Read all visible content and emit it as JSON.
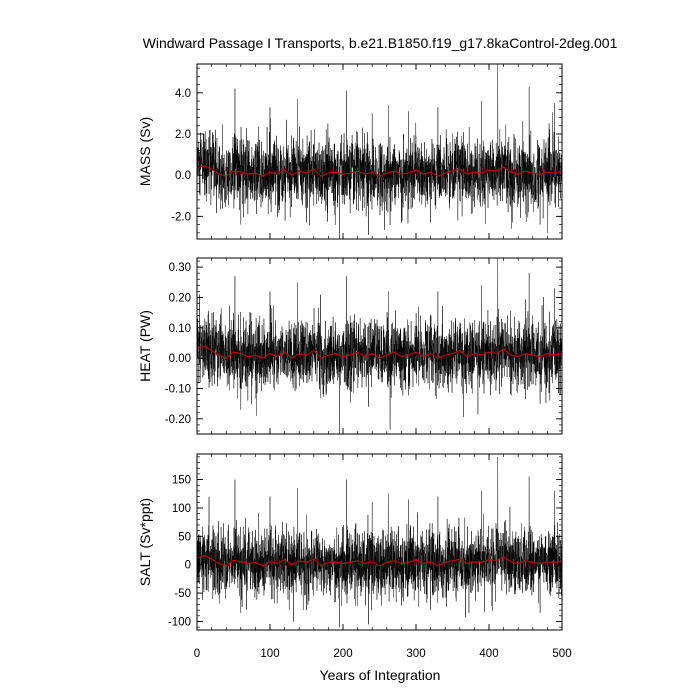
{
  "title": "Windward Passage I Transports, b.e21.B1850.f19_g17.8kaControl-2deg.001",
  "xlabel": "Years of Integration",
  "colors": {
    "raw": "#000000",
    "smoothed": "#cc0000",
    "frame": "#000000"
  },
  "chart_data": [
    {
      "type": "line",
      "ylabel": "MASS (Sv)",
      "xlim": [
        0,
        500
      ],
      "ylim": [
        -3.1,
        5.4
      ],
      "xticks": [
        0,
        100,
        200,
        300,
        400,
        500
      ],
      "xtick_labels": [
        "0",
        "100",
        "200",
        "300",
        "400",
        "500"
      ],
      "yticks": [
        -2.0,
        0.0,
        2.0,
        4.0
      ],
      "ytick_labels": [
        "-2.0",
        "0.0",
        "2.0",
        "4.0"
      ],
      "series": [
        {
          "name": "",
          "style": "monthly",
          "color": "#000000",
          "summary": {
            "mean": 0.1,
            "spread": 0.85,
            "max": 5.4,
            "min": -3.1
          }
        },
        {
          "name": "",
          "style": "smoothed",
          "color": "#cc0000",
          "points": [
            [
              0,
              0.35
            ],
            [
              10,
              0.45
            ],
            [
              20,
              0.3
            ],
            [
              30,
              0.05
            ],
            [
              40,
              -0.05
            ],
            [
              50,
              0.2
            ],
            [
              60,
              0.15
            ],
            [
              70,
              0.05
            ],
            [
              80,
              0.1
            ],
            [
              90,
              -0.05
            ],
            [
              100,
              0.15
            ],
            [
              110,
              0.05
            ],
            [
              120,
              0.25
            ],
            [
              130,
              0.0
            ],
            [
              140,
              0.2
            ],
            [
              150,
              0.1
            ],
            [
              160,
              0.3
            ],
            [
              170,
              -0.05
            ],
            [
              180,
              0.1
            ],
            [
              190,
              0.15
            ],
            [
              200,
              0.05
            ],
            [
              210,
              0.1
            ],
            [
              220,
              0.2
            ],
            [
              230,
              0.05
            ],
            [
              240,
              0.15
            ],
            [
              250,
              -0.05
            ],
            [
              260,
              0.1
            ],
            [
              270,
              0.2
            ],
            [
              280,
              0.05
            ],
            [
              290,
              0.1
            ],
            [
              300,
              0.25
            ],
            [
              310,
              0.05
            ],
            [
              320,
              0.15
            ],
            [
              330,
              -0.05
            ],
            [
              340,
              0.1
            ],
            [
              350,
              0.2
            ],
            [
              360,
              0.3
            ],
            [
              370,
              0.05
            ],
            [
              380,
              0.15
            ],
            [
              390,
              0.1
            ],
            [
              400,
              0.25
            ],
            [
              410,
              0.2
            ],
            [
              420,
              0.4
            ],
            [
              430,
              0.15
            ],
            [
              440,
              0.05
            ],
            [
              450,
              0.2
            ],
            [
              460,
              0.1
            ],
            [
              470,
              0.05
            ],
            [
              480,
              0.15
            ],
            [
              490,
              0.1
            ],
            [
              500,
              0.2
            ]
          ]
        }
      ],
      "spikes": [
        [
          52,
          4.2
        ],
        [
          100,
          3.3
        ],
        [
          138,
          3.7
        ],
        [
          205,
          4.1
        ],
        [
          240,
          3.0
        ],
        [
          262,
          3.4
        ],
        [
          290,
          3.1
        ],
        [
          330,
          3.3
        ],
        [
          390,
          3.6
        ],
        [
          412,
          5.4
        ],
        [
          455,
          4.3
        ],
        [
          490,
          3.5
        ],
        [
          195,
          -3.1
        ],
        [
          235,
          -2.9
        ],
        [
          60,
          -2.4
        ],
        [
          150,
          -2.3
        ],
        [
          320,
          -2.3
        ],
        [
          470,
          -2.4
        ]
      ]
    },
    {
      "type": "line",
      "ylabel": "HEAT (PW)",
      "xlim": [
        0,
        500
      ],
      "ylim": [
        -0.25,
        0.33
      ],
      "xticks": [
        0,
        100,
        200,
        300,
        400,
        500
      ],
      "xtick_labels": [
        "0",
        "100",
        "200",
        "300",
        "400",
        "500"
      ],
      "yticks": [
        -0.2,
        -0.1,
        0.0,
        0.1,
        0.2,
        0.3
      ],
      "ytick_labels": [
        "-0.20",
        "-0.10",
        "0.00",
        "0.10",
        "0.20",
        "0.30"
      ],
      "series": [
        {
          "name": "",
          "style": "monthly",
          "color": "#000000",
          "summary": {
            "mean": 0.01,
            "spread": 0.055,
            "max": 0.33,
            "min": -0.25
          }
        },
        {
          "name": "",
          "style": "smoothed",
          "color": "#cc0000",
          "points": [
            [
              0,
              0.03
            ],
            [
              10,
              0.04
            ],
            [
              20,
              0.025
            ],
            [
              30,
              0.01
            ],
            [
              40,
              0.0
            ],
            [
              50,
              0.02
            ],
            [
              60,
              0.015
            ],
            [
              70,
              0.005
            ],
            [
              80,
              0.01
            ],
            [
              90,
              0.0
            ],
            [
              100,
              0.015
            ],
            [
              110,
              0.005
            ],
            [
              120,
              0.02
            ],
            [
              130,
              0.0
            ],
            [
              140,
              0.015
            ],
            [
              150,
              0.01
            ],
            [
              160,
              0.025
            ],
            [
              170,
              0.0
            ],
            [
              180,
              0.01
            ],
            [
              190,
              0.015
            ],
            [
              200,
              0.005
            ],
            [
              210,
              0.01
            ],
            [
              220,
              0.02
            ],
            [
              230,
              0.005
            ],
            [
              240,
              0.015
            ],
            [
              250,
              0.0
            ],
            [
              260,
              0.01
            ],
            [
              270,
              0.02
            ],
            [
              280,
              0.005
            ],
            [
              290,
              0.01
            ],
            [
              300,
              0.02
            ],
            [
              310,
              0.005
            ],
            [
              320,
              0.015
            ],
            [
              330,
              0.0
            ],
            [
              340,
              0.01
            ],
            [
              350,
              0.015
            ],
            [
              360,
              0.025
            ],
            [
              370,
              0.005
            ],
            [
              380,
              0.015
            ],
            [
              390,
              0.01
            ],
            [
              400,
              0.02
            ],
            [
              410,
              0.015
            ],
            [
              420,
              0.03
            ],
            [
              430,
              0.01
            ],
            [
              440,
              0.005
            ],
            [
              450,
              0.015
            ],
            [
              460,
              0.01
            ],
            [
              470,
              0.005
            ],
            [
              480,
              0.015
            ],
            [
              490,
              0.01
            ],
            [
              500,
              0.015
            ]
          ]
        }
      ],
      "spikes": [
        [
          52,
          0.27
        ],
        [
          100,
          0.22
        ],
        [
          138,
          0.25
        ],
        [
          205,
          0.27
        ],
        [
          262,
          0.22
        ],
        [
          330,
          0.22
        ],
        [
          390,
          0.24
        ],
        [
          412,
          0.33
        ],
        [
          455,
          0.28
        ],
        [
          490,
          0.23
        ],
        [
          195,
          -0.25
        ],
        [
          60,
          -0.17
        ],
        [
          235,
          -0.16
        ],
        [
          470,
          -0.15
        ]
      ]
    },
    {
      "type": "line",
      "ylabel": "SALT (Sv*ppt)",
      "xlim": [
        0,
        500
      ],
      "ylim": [
        -115,
        195
      ],
      "xticks": [
        0,
        100,
        200,
        300,
        400,
        500
      ],
      "xtick_labels": [
        "0",
        "100",
        "200",
        "300",
        "400",
        "500"
      ],
      "yticks": [
        -100,
        -50,
        0,
        50,
        100,
        150
      ],
      "ytick_labels": [
        "-100",
        "-50",
        "0",
        "50",
        "100",
        "150"
      ],
      "series": [
        {
          "name": "",
          "style": "monthly",
          "color": "#000000",
          "summary": {
            "mean": 3,
            "spread": 30,
            "max": 190,
            "min": -110
          }
        },
        {
          "name": "",
          "style": "smoothed",
          "color": "#cc0000",
          "points": [
            [
              0,
              12
            ],
            [
              10,
              16
            ],
            [
              20,
              10
            ],
            [
              30,
              2
            ],
            [
              40,
              -2
            ],
            [
              50,
              8
            ],
            [
              60,
              5
            ],
            [
              70,
              2
            ],
            [
              80,
              4
            ],
            [
              90,
              -2
            ],
            [
              100,
              5
            ],
            [
              110,
              2
            ],
            [
              120,
              9
            ],
            [
              130,
              0
            ],
            [
              140,
              7
            ],
            [
              150,
              4
            ],
            [
              160,
              10
            ],
            [
              170,
              -2
            ],
            [
              180,
              4
            ],
            [
              190,
              5
            ],
            [
              200,
              2
            ],
            [
              210,
              4
            ],
            [
              220,
              7
            ],
            [
              230,
              2
            ],
            [
              240,
              5
            ],
            [
              250,
              -2
            ],
            [
              260,
              4
            ],
            [
              270,
              7
            ],
            [
              280,
              2
            ],
            [
              290,
              4
            ],
            [
              300,
              9
            ],
            [
              310,
              2
            ],
            [
              320,
              5
            ],
            [
              330,
              -2
            ],
            [
              340,
              4
            ],
            [
              350,
              7
            ],
            [
              360,
              10
            ],
            [
              370,
              2
            ],
            [
              380,
              5
            ],
            [
              390,
              4
            ],
            [
              400,
              9
            ],
            [
              410,
              7
            ],
            [
              420,
              14
            ],
            [
              430,
              5
            ],
            [
              440,
              2
            ],
            [
              450,
              7
            ],
            [
              460,
              4
            ],
            [
              470,
              2
            ],
            [
              480,
              5
            ],
            [
              490,
              4
            ],
            [
              500,
              7
            ]
          ]
        }
      ],
      "spikes": [
        [
          52,
          150
        ],
        [
          100,
          120
        ],
        [
          138,
          135
        ],
        [
          205,
          150
        ],
        [
          240,
          110
        ],
        [
          262,
          125
        ],
        [
          290,
          115
        ],
        [
          330,
          120
        ],
        [
          390,
          130
        ],
        [
          412,
          190
        ],
        [
          455,
          155
        ],
        [
          490,
          130
        ],
        [
          195,
          -110
        ],
        [
          235,
          -105
        ],
        [
          60,
          -85
        ],
        [
          150,
          -80
        ],
        [
          320,
          -80
        ],
        [
          470,
          -85
        ]
      ]
    }
  ]
}
